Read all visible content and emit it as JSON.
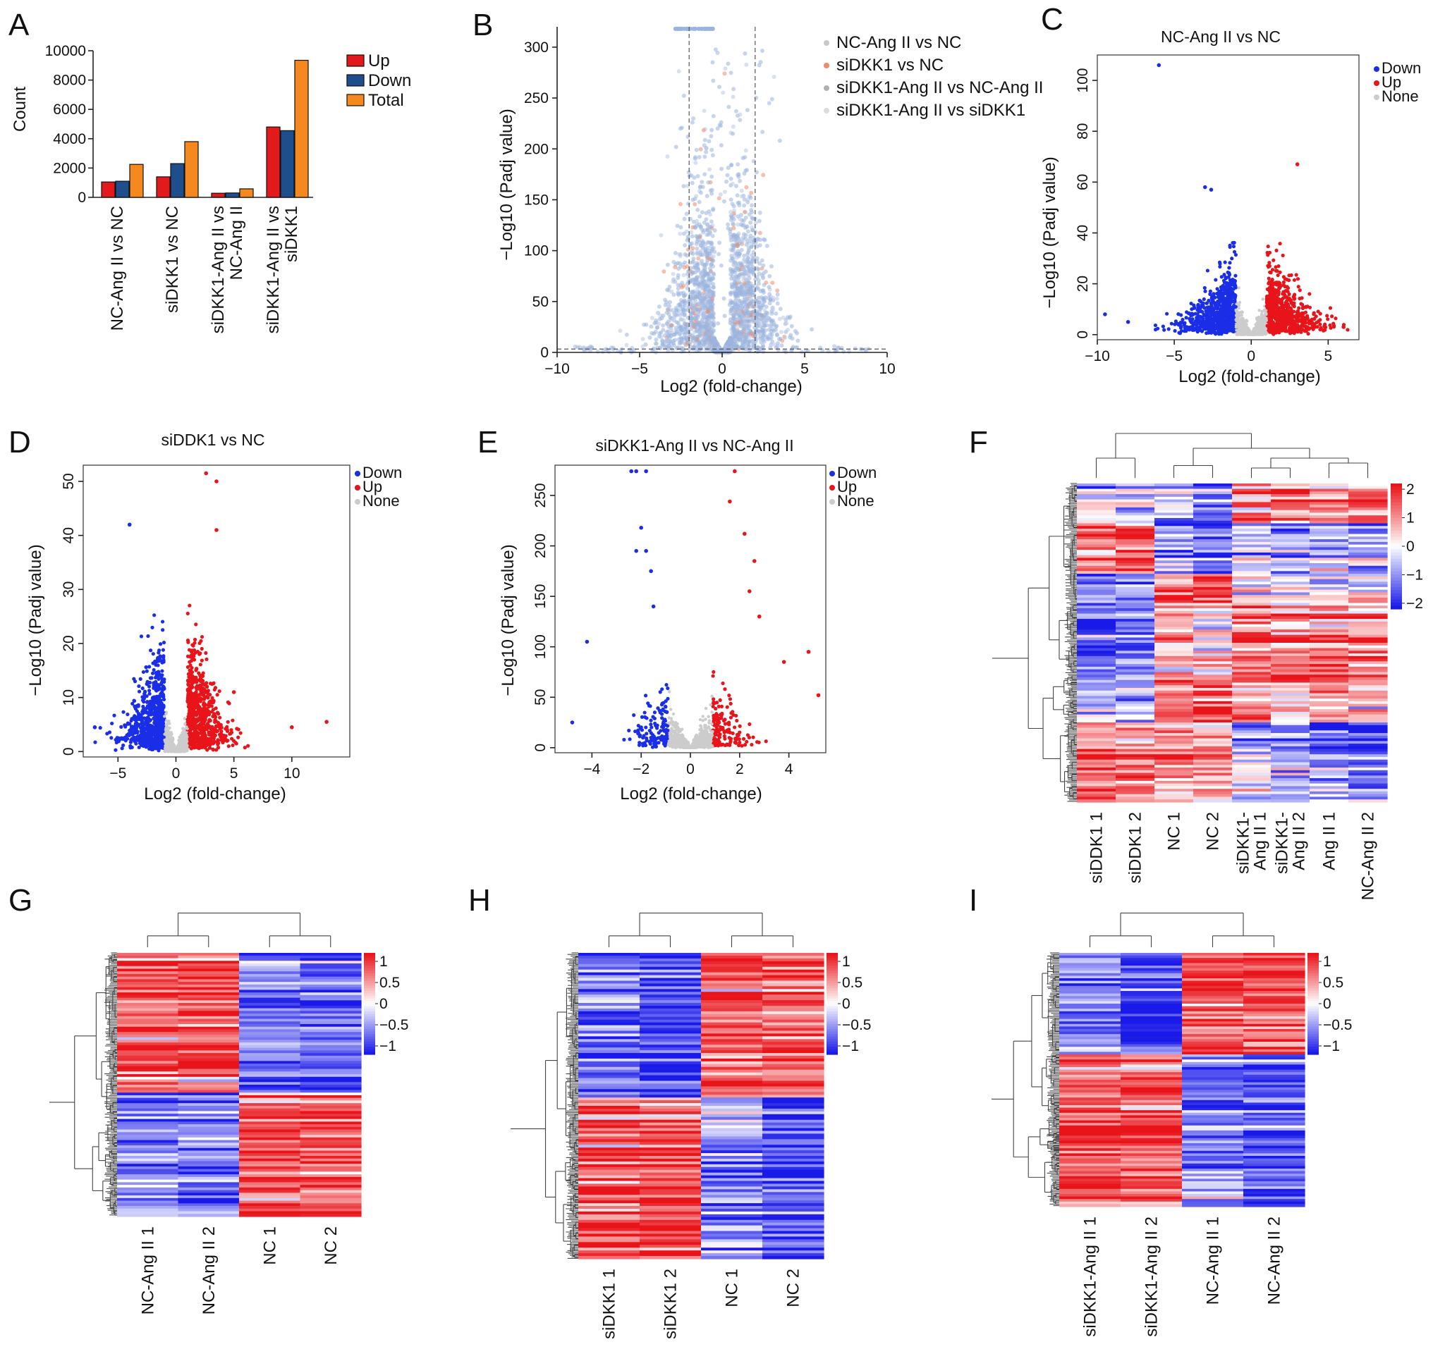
{
  "colors": {
    "up": "#e8141a",
    "down": "#1a2ee8",
    "none": "#cccccc",
    "bar_up": "#e31a1c",
    "bar_down": "#1f4e8c",
    "bar_total": "#f5881f",
    "hm_high": "#e8141a",
    "hm_mid": "#ffffff",
    "hm_low": "#1a1ae8"
  },
  "chart_data": [
    {
      "panel": "A",
      "type": "bar",
      "title": "",
      "ylabel": "Count",
      "ylim": [
        0,
        10000
      ],
      "yticks": [
        "0",
        "2000",
        "4000",
        "6000",
        "8000",
        "10000"
      ],
      "categories": [
        "NC-Ang II vs NC",
        "siDKK1 vs NC",
        "siDKK1-Ang II vs NC-Ang II",
        "siDKK1-Ang II vs siDKK1"
      ],
      "category_lines": [
        [
          "NC-Ang II vs NC"
        ],
        [
          "siDKK1 vs NC"
        ],
        [
          "siDKK1-Ang II vs",
          "NC-Ang II"
        ],
        [
          "siDKK1-Ang II vs",
          "siDKK1"
        ]
      ],
      "series": [
        {
          "name": "Up",
          "values": [
            1050,
            1400,
            280,
            4800
          ]
        },
        {
          "name": "Down",
          "values": [
            1100,
            2300,
            300,
            4550
          ]
        },
        {
          "name": "Total",
          "values": [
            2250,
            3800,
            580,
            9350
          ]
        }
      ]
    },
    {
      "panel": "B",
      "type": "scatter",
      "title": "",
      "xlabel": "Log2 (fold-change)",
      "ylabel": "−Log10 (Padj value)",
      "xlim": [
        -10,
        10
      ],
      "ylim": [
        0,
        320
      ],
      "xticks": [
        "−10",
        "−5",
        "0",
        "5",
        "10"
      ],
      "yticks": [
        "0",
        "50",
        "100",
        "150",
        "200",
        "250",
        "300"
      ],
      "legend": [
        "NC-Ang II vs NC",
        "siDKK1 vs NC",
        "siDKK1-Ang II vs NC-Ang II",
        "siDKK1-Ang II vs siDKK1"
      ],
      "threshold_x": [
        -2,
        2
      ],
      "threshold_y": 1.3
    },
    {
      "panel": "C",
      "type": "scatter",
      "title": "NC-Ang II vs NC",
      "xlabel": "Log2 (fold-change)",
      "ylabel": "−Log10 (Padj value)",
      "xlim": [
        -10,
        7
      ],
      "ylim": [
        -2,
        110
      ],
      "xticks": [
        "−10",
        "−5",
        "0",
        "5"
      ],
      "yticks": [
        "0",
        "20",
        "40",
        "60",
        "80",
        "100"
      ],
      "legend": [
        "Down",
        "Up",
        "None"
      ]
    },
    {
      "panel": "D",
      "type": "scatter",
      "title": "siDDK1 vs NC",
      "xlabel": "Log2 (fold-change)",
      "ylabel": "−Log10 (Padj value)",
      "xlim": [
        -8,
        15
      ],
      "ylim": [
        -1,
        53
      ],
      "xticks": [
        "−5",
        "0",
        "5",
        "10"
      ],
      "yticks": [
        "0",
        "10",
        "20",
        "30",
        "40",
        "50"
      ],
      "legend": [
        "Down",
        "Up",
        "None"
      ]
    },
    {
      "panel": "E",
      "type": "scatter",
      "title": "siDKK1-Ang II vs NC-Ang II",
      "xlabel": "Log2 (fold-change)",
      "ylabel": "−Log10 (Padj value)",
      "xlim": [
        -5.5,
        5.5
      ],
      "ylim": [
        -5,
        280
      ],
      "xticks": [
        "−4",
        "−2",
        "0",
        "2",
        "4"
      ],
      "yticks": [
        "0",
        "50",
        "100",
        "150",
        "200",
        "250"
      ],
      "legend": [
        "Down",
        "Up",
        "None"
      ]
    },
    {
      "panel": "F",
      "type": "heatmap",
      "columns": [
        "siDDK1 1",
        "siDDK1 2",
        "NC 1",
        "NC 2",
        "siDKK1-Ang II 1",
        "siDKK1-Ang II 2",
        "Ang II 1",
        "NC-Ang II 2"
      ],
      "column_lines": [
        [
          "siDDK1 1"
        ],
        [
          "siDDK1 2"
        ],
        [
          "NC 1"
        ],
        [
          "NC 2"
        ],
        [
          "siDKK1-",
          "Ang II 1"
        ],
        [
          "siDKK1-",
          "Ang II 2"
        ],
        [
          "Ang II 1"
        ],
        [
          "NC-Ang II 2"
        ]
      ],
      "colorbar_ticks": [
        "2",
        "1",
        "0",
        "−1",
        "−2"
      ],
      "range": [
        -2.2,
        2.2
      ]
    },
    {
      "panel": "G",
      "type": "heatmap",
      "columns": [
        "NC-Ang II 1",
        "NC-Ang II 2",
        "NC 1",
        "NC 2"
      ],
      "colorbar_ticks": [
        "1",
        "0.5",
        "0",
        "−0.5",
        "−1"
      ],
      "range": [
        -1.2,
        1.2
      ]
    },
    {
      "panel": "H",
      "type": "heatmap",
      "columns": [
        "siDKK1 1",
        "siDKK1 2",
        "NC 1",
        "NC 2"
      ],
      "colorbar_ticks": [
        "1",
        "0.5",
        "0",
        "−0.5",
        "−1"
      ],
      "range": [
        -1.2,
        1.2
      ]
    },
    {
      "panel": "I",
      "type": "heatmap",
      "columns": [
        "siDKK1-Ang II 1",
        "siDKK1-Ang II 2",
        "NC-Ang II 1",
        "NC-Ang II 2"
      ],
      "colorbar_ticks": [
        "1",
        "0.5",
        "0",
        "−0.5",
        "−1"
      ],
      "range": [
        -1.2,
        1.2
      ]
    }
  ]
}
